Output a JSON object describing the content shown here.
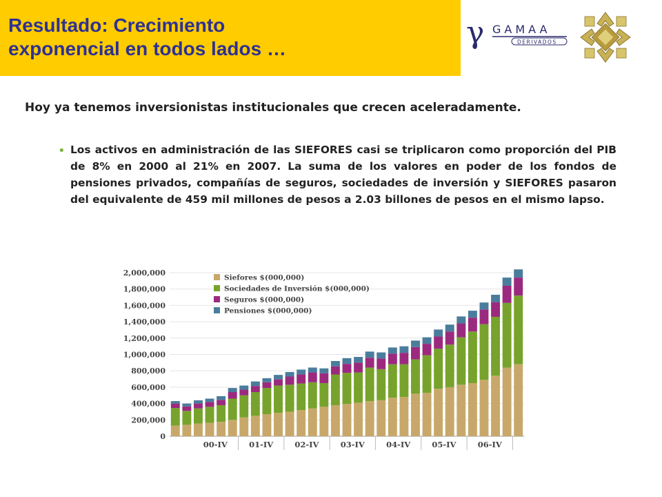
{
  "header": {
    "title_line1": "Resultado: Crecimiento",
    "title_line2": "exponencial en todos lados …",
    "bar_color": "#ffcc00",
    "title_color": "#2e3192"
  },
  "logos": {
    "gamaa": {
      "symbol": "γ",
      "name": "GAMAA",
      "tagline": "DERIVADOS"
    },
    "seal_icon": "gold-cross-seal"
  },
  "subtitle": "Hoy ya tenemos inversionistas institucionales que crecen aceleradamente.",
  "bullet": "Los activos en administración de las SIEFORES casi se triplicaron como proporción del PIB de 8% en 2000 al 21% en 2007. La suma de los valores en poder de los fondos de pensiones privados, compañías de seguros, sociedades de inversión y SIEFORES pasaron del equivalente de 459 mil millones de pesos a 2.03 billones de pesos en el mismo lapso.",
  "chart_data": {
    "type": "bar",
    "stacked": true,
    "ylim": [
      0,
      2000000
    ],
    "yticks": [
      0,
      200000,
      400000,
      600000,
      800000,
      1000000,
      1200000,
      1400000,
      1600000,
      1800000,
      2000000
    ],
    "ytick_labels": [
      "0",
      "200,000",
      "400,000",
      "600,000",
      "800,000",
      "1,000,000",
      "1,200,000",
      "1,400,000",
      "1,600,000",
      "1,800,000",
      "2,000,000"
    ],
    "xtick_labels": [
      {
        "label": "00-IV",
        "after_index": 5
      },
      {
        "label": "01-IV",
        "after_index": 9
      },
      {
        "label": "02-IV",
        "after_index": 13
      },
      {
        "label": "03-IV",
        "after_index": 17
      },
      {
        "label": "04-IV",
        "after_index": 21
      },
      {
        "label": "05-IV",
        "after_index": 25
      },
      {
        "label": "06-IV",
        "after_index": 29
      }
    ],
    "legend_position": "top-left",
    "series": [
      {
        "name": "Siefores $(000,000)",
        "color": "#c8a86a",
        "values": [
          130000,
          140000,
          155000,
          165000,
          175000,
          200000,
          230000,
          250000,
          270000,
          285000,
          300000,
          320000,
          340000,
          360000,
          380000,
          395000,
          410000,
          430000,
          440000,
          470000,
          480000,
          520000,
          530000,
          580000,
          600000,
          630000,
          650000,
          690000,
          740000,
          840000,
          880000
        ]
      },
      {
        "name": "Sociedades de Inversión $(000,000)",
        "color": "#77a32c",
        "values": [
          215000,
          170000,
          185000,
          195000,
          205000,
          260000,
          270000,
          290000,
          320000,
          335000,
          330000,
          325000,
          320000,
          290000,
          375000,
          380000,
          370000,
          410000,
          380000,
          410000,
          400000,
          420000,
          460000,
          490000,
          520000,
          580000,
          630000,
          680000,
          720000,
          790000,
          840000
        ]
      },
      {
        "name": "Seguros $(000,000)",
        "color": "#9b2a7e",
        "values": [
          55000,
          55000,
          60000,
          60000,
          65000,
          80000,
          70000,
          75000,
          70000,
          75000,
          100000,
          110000,
          120000,
          120000,
          100000,
          110000,
          120000,
          120000,
          130000,
          130000,
          140000,
          150000,
          140000,
          150000,
          160000,
          170000,
          170000,
          180000,
          180000,
          210000,
          220000
        ]
      },
      {
        "name": "Pensiones $(000,000)",
        "color": "#4a7d9c",
        "values": [
          30000,
          35000,
          40000,
          40000,
          45000,
          50000,
          50000,
          55000,
          50000,
          55000,
          55000,
          60000,
          60000,
          60000,
          65000,
          70000,
          70000,
          75000,
          75000,
          75000,
          80000,
          80000,
          80000,
          85000,
          85000,
          85000,
          85000,
          85000,
          90000,
          100000,
          100000
        ]
      }
    ]
  }
}
